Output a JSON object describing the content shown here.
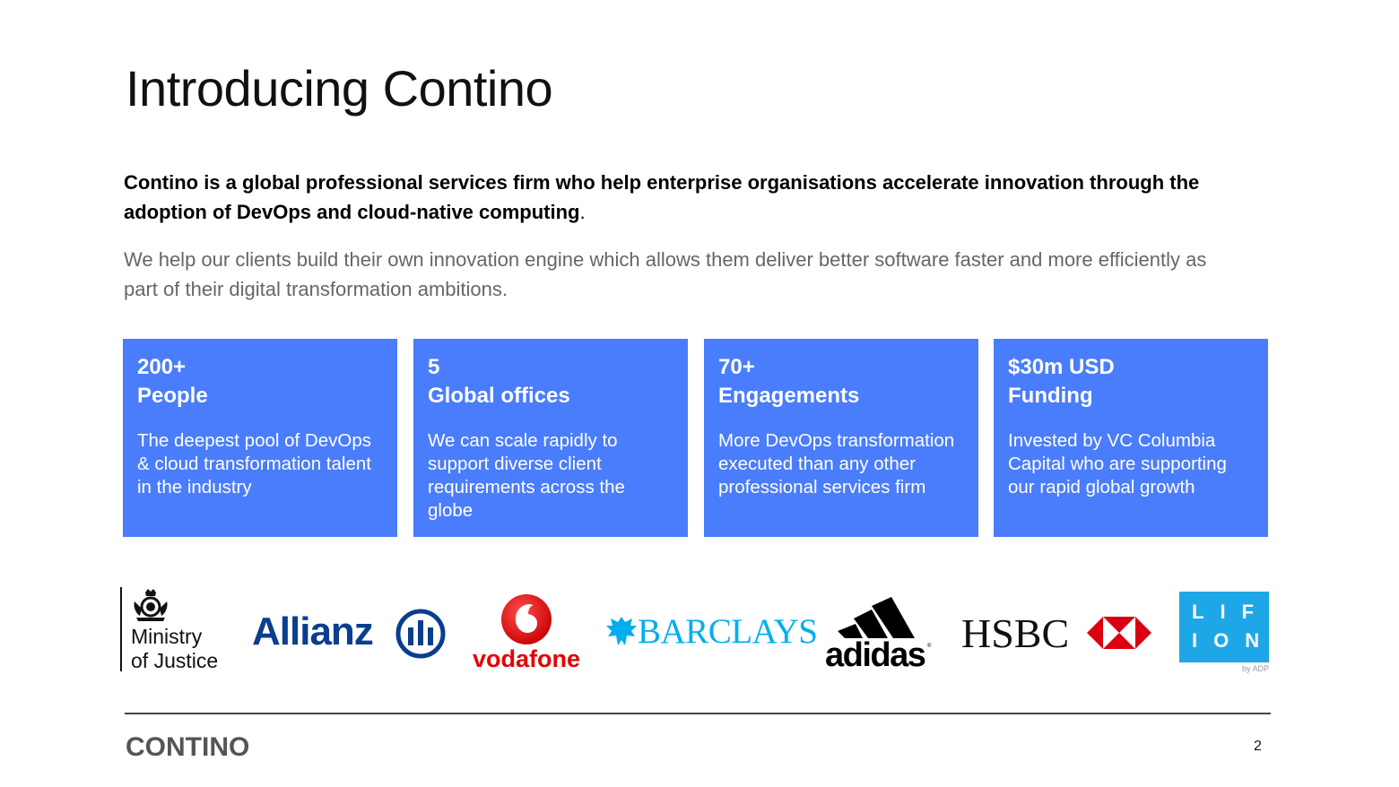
{
  "slide": {
    "title": "Introducing Contino",
    "intro_bold": "Contino is a global professional services firm who help enterprise organisations accelerate innovation through the adoption of DevOps and cloud-native computing",
    "intro_bold_punct": ".",
    "intro_light": "We help our clients build their own innovation engine which allows them deliver better software faster and more efficiently as part of their digital transformation ambitions."
  },
  "stats": [
    {
      "value": "200+",
      "label": "People",
      "description": "The deepest pool of DevOps & cloud transformation talent in the industry"
    },
    {
      "value": "5",
      "label": "Global offices",
      "description": "We can scale rapidly to support diverse client requirements across the globe"
    },
    {
      "value": "70+",
      "label": "Engagements",
      "description": "More DevOps transformation executed than any other professional services firm"
    },
    {
      "value": "$30m USD",
      "label": "Funding",
      "description": "Invested by VC Columbia Capital who are supporting our rapid global growth"
    }
  ],
  "logos": {
    "moj": {
      "line1": "Ministry",
      "line2": "of Justice"
    },
    "allianz": "Allianz",
    "vodafone": "vodafone",
    "barclays": "BARCLAYS",
    "adidas": "adidas",
    "adidas_reg": "®",
    "hsbc": "HSBC",
    "lifion": {
      "row1": "LIF",
      "row2": "ION",
      "by": "by ADP"
    }
  },
  "colors": {
    "card_blue": "#4a7dfb",
    "vodafone_red": "#e60000",
    "barclays_blue": "#00aeef",
    "allianz_blue": "#0a3e8e",
    "hsbc_red": "#db0011",
    "lifion_blue": "#1ea7e7"
  },
  "footer": {
    "brand": "CONTINO",
    "page_number": "2"
  }
}
